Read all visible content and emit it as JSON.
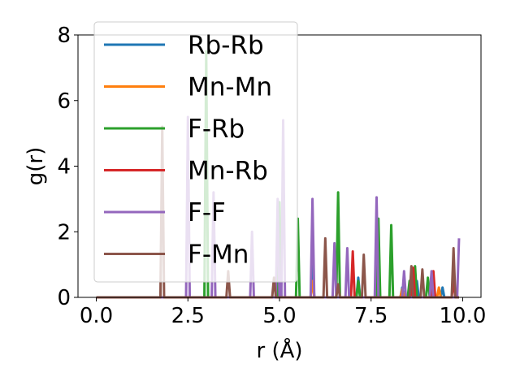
{
  "chart_data": {
    "type": "line",
    "xlabel": "r (Å)",
    "ylabel": "g(r)",
    "xlim": [
      -0.5,
      10.5
    ],
    "ylim": [
      0,
      8
    ],
    "x_ticks": [
      "0.0",
      "2.5",
      "5.0",
      "7.5",
      "10.0"
    ],
    "x_tick_values": [
      0,
      2.5,
      5,
      7.5,
      10
    ],
    "y_ticks": [
      "0",
      "2",
      "4",
      "6",
      "8"
    ],
    "y_tick_values": [
      0,
      2,
      4,
      6,
      8
    ],
    "legend_position": "upper-left",
    "series": [
      {
        "name": "Rb-Rb",
        "color": "#1f77b4",
        "points": [
          [
            0,
            0
          ],
          [
            5.85,
            0
          ],
          [
            5.9,
            1.0
          ],
          [
            5.95,
            0
          ],
          [
            7.1,
            0
          ],
          [
            7.15,
            0.6
          ],
          [
            7.2,
            0
          ],
          [
            8.3,
            0
          ],
          [
            8.35,
            0.3
          ],
          [
            8.4,
            0
          ],
          [
            8.7,
            0
          ],
          [
            8.75,
            0.5
          ],
          [
            8.8,
            0
          ],
          [
            9.4,
            0
          ],
          [
            9.45,
            0.3
          ],
          [
            9.5,
            0
          ],
          [
            9.9,
            0
          ]
        ]
      },
      {
        "name": "Mn-Mn",
        "color": "#ff7f0e",
        "points": [
          [
            0,
            0
          ],
          [
            5.85,
            0
          ],
          [
            5.9,
            0.5
          ],
          [
            5.95,
            0
          ],
          [
            8.3,
            0
          ],
          [
            8.35,
            0.25
          ],
          [
            8.4,
            0
          ],
          [
            9.3,
            0
          ],
          [
            9.35,
            0.3
          ],
          [
            9.4,
            0
          ],
          [
            9.9,
            0
          ]
        ]
      },
      {
        "name": "F-Rb",
        "color": "#2ca02c",
        "points": [
          [
            0,
            0
          ],
          [
            2.95,
            0
          ],
          [
            3.0,
            7.5
          ],
          [
            3.05,
            0
          ],
          [
            4.95,
            0
          ],
          [
            5.0,
            2.9
          ],
          [
            5.05,
            0
          ],
          [
            5.45,
            0
          ],
          [
            5.5,
            2.4
          ],
          [
            5.55,
            0
          ],
          [
            6.55,
            0
          ],
          [
            6.6,
            3.2
          ],
          [
            6.65,
            0
          ],
          [
            7.1,
            0
          ],
          [
            7.15,
            0.5
          ],
          [
            7.2,
            0
          ],
          [
            7.65,
            0
          ],
          [
            7.7,
            2.4
          ],
          [
            7.75,
            0
          ],
          [
            8.0,
            0
          ],
          [
            8.05,
            2.2
          ],
          [
            8.1,
            0
          ],
          [
            8.5,
            0
          ],
          [
            8.55,
            0.5
          ],
          [
            8.6,
            0
          ],
          [
            8.65,
            0
          ],
          [
            8.7,
            0.95
          ],
          [
            8.75,
            0
          ],
          [
            9.0,
            0
          ],
          [
            9.05,
            0.6
          ],
          [
            9.1,
            0
          ],
          [
            9.9,
            0
          ]
        ]
      },
      {
        "name": "Mn-Rb",
        "color": "#d62728",
        "points": [
          [
            0,
            0
          ],
          [
            6.95,
            0
          ],
          [
            7.0,
            1.4
          ],
          [
            7.05,
            0
          ],
          [
            8.6,
            0
          ],
          [
            8.65,
            0.9
          ],
          [
            8.7,
            0
          ],
          [
            9.15,
            0
          ],
          [
            9.2,
            0.8
          ],
          [
            9.25,
            0
          ],
          [
            9.7,
            0
          ],
          [
            9.75,
            0.5
          ],
          [
            9.8,
            0
          ],
          [
            9.9,
            0
          ]
        ]
      },
      {
        "name": "F-F",
        "color": "#9467bd",
        "points": [
          [
            0,
            0
          ],
          [
            2.45,
            0
          ],
          [
            2.5,
            5.5
          ],
          [
            2.55,
            0
          ],
          [
            3.15,
            0
          ],
          [
            3.2,
            3.2
          ],
          [
            3.25,
            0
          ],
          [
            4.2,
            0
          ],
          [
            4.25,
            2.0
          ],
          [
            4.3,
            0
          ],
          [
            4.9,
            0
          ],
          [
            4.95,
            3.0
          ],
          [
            5.0,
            0
          ],
          [
            5.05,
            0
          ],
          [
            5.1,
            5.4
          ],
          [
            5.15,
            0
          ],
          [
            5.85,
            0
          ],
          [
            5.9,
            3.0
          ],
          [
            5.95,
            0
          ],
          [
            6.45,
            0
          ],
          [
            6.5,
            1.65
          ],
          [
            6.55,
            0
          ],
          [
            6.8,
            0
          ],
          [
            6.85,
            1.5
          ],
          [
            6.9,
            0
          ],
          [
            7.6,
            0
          ],
          [
            7.65,
            3.05
          ],
          [
            7.7,
            0
          ],
          [
            8.35,
            0
          ],
          [
            8.4,
            0.8
          ],
          [
            8.45,
            0
          ],
          [
            9.1,
            0
          ],
          [
            9.15,
            0.8
          ],
          [
            9.2,
            0
          ],
          [
            9.85,
            0
          ],
          [
            9.9,
            1.8
          ]
        ]
      },
      {
        "name": "F-Mn",
        "color": "#8c564b",
        "points": [
          [
            0,
            0
          ],
          [
            1.75,
            0
          ],
          [
            1.8,
            5.2
          ],
          [
            1.85,
            0
          ],
          [
            3.55,
            0
          ],
          [
            3.6,
            0.8
          ],
          [
            3.65,
            0
          ],
          [
            4.8,
            0
          ],
          [
            4.85,
            0.6
          ],
          [
            4.9,
            0
          ],
          [
            6.2,
            0
          ],
          [
            6.25,
            1.8
          ],
          [
            6.3,
            0
          ],
          [
            6.55,
            0
          ],
          [
            6.6,
            0.4
          ],
          [
            6.65,
            0
          ],
          [
            7.25,
            0
          ],
          [
            7.3,
            1.3
          ],
          [
            7.35,
            0
          ],
          [
            8.55,
            0
          ],
          [
            8.6,
            0.95
          ],
          [
            8.65,
            0
          ],
          [
            8.85,
            0
          ],
          [
            8.9,
            0.85
          ],
          [
            8.95,
            0
          ],
          [
            9.7,
            0
          ],
          [
            9.75,
            1.5
          ],
          [
            9.8,
            0
          ],
          [
            9.9,
            0
          ]
        ]
      }
    ]
  }
}
